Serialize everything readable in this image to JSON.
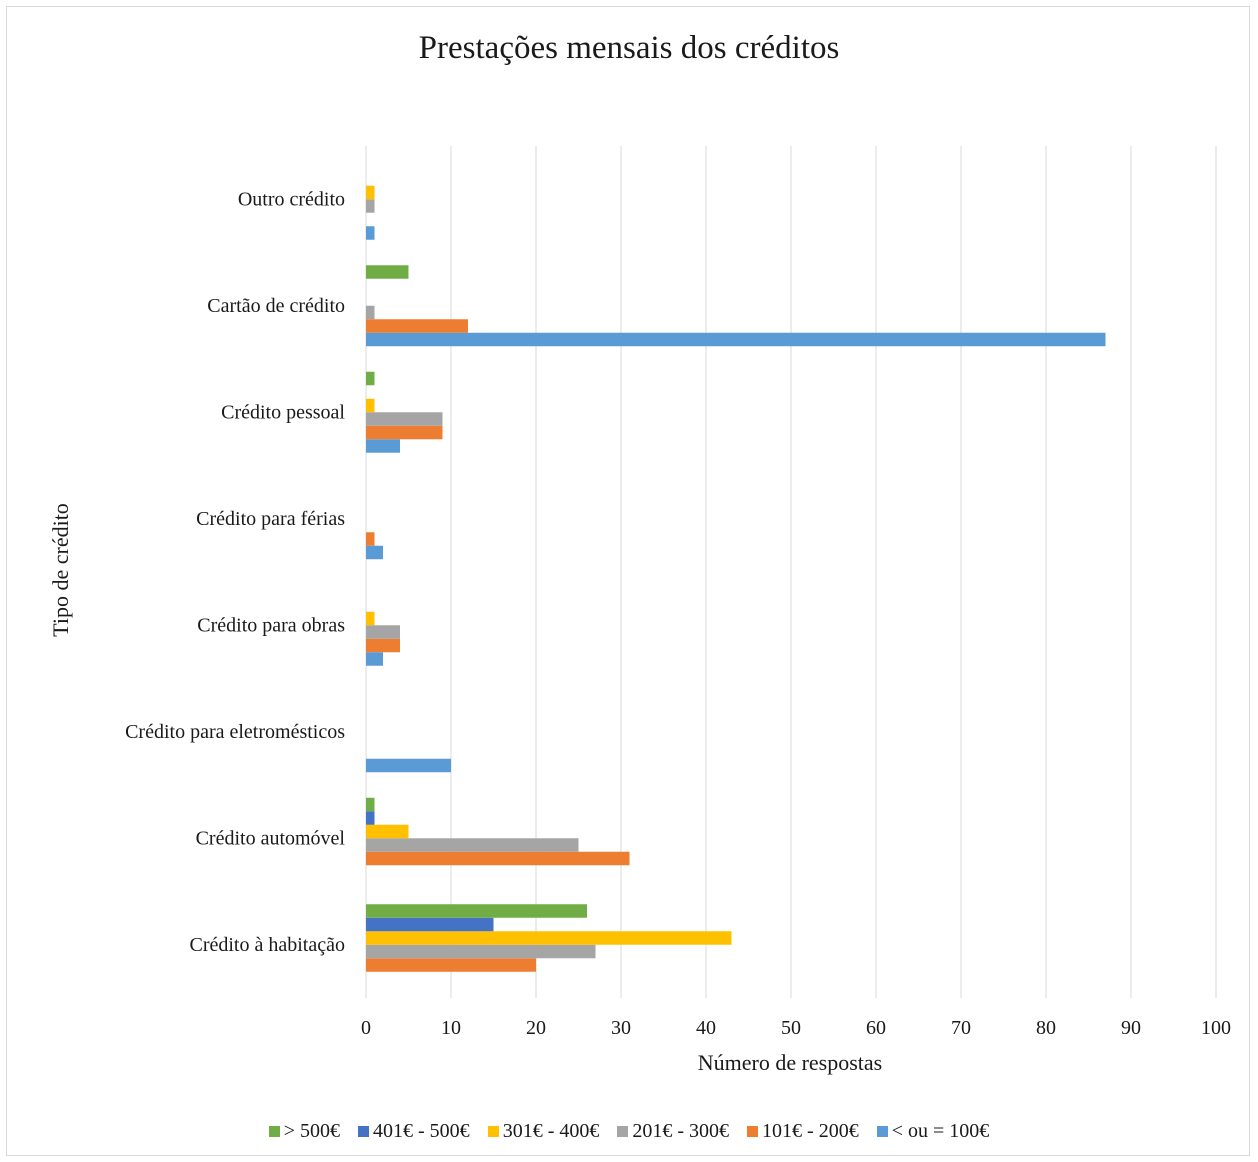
{
  "chart_data": {
    "type": "bar",
    "orientation": "horizontal",
    "title": "Prestações mensais dos créditos",
    "xlabel": "Número de respostas",
    "ylabel": "Tipo de crédito",
    "xlim": [
      0,
      100
    ],
    "xticks": [
      "0",
      "10",
      "20",
      "30",
      "40",
      "50",
      "60",
      "70",
      "80",
      "90",
      "100"
    ],
    "grid": "vertical",
    "legend_position": "bottom",
    "categories": [
      "Crédito à habitação",
      "Crédito automóvel",
      "Crédito para eletromésticos",
      "Crédito para obras",
      "Crédito para férias",
      "Crédito pessoal",
      "Cartão de crédito",
      "Outro crédito"
    ],
    "series": [
      {
        "name": "< ou = 100€",
        "color": "#5b9bd5",
        "values": [
          0,
          0,
          10,
          2,
          2,
          4,
          87,
          1
        ]
      },
      {
        "name": "101€ - 200€",
        "color": "#ed7d31",
        "values": [
          20,
          31,
          0,
          4,
          1,
          9,
          12,
          0
        ]
      },
      {
        "name": "201€ - 300€",
        "color": "#a5a5a5",
        "values": [
          27,
          25,
          0,
          4,
          0,
          9,
          1,
          1
        ]
      },
      {
        "name": "301€ - 400€",
        "color": "#ffc000",
        "values": [
          43,
          5,
          0,
          1,
          0,
          1,
          0,
          1
        ]
      },
      {
        "name": "401€ - 500€",
        "color": "#4472c4",
        "values": [
          15,
          1,
          0,
          0,
          0,
          0,
          0,
          0
        ]
      },
      {
        "name": "> 500€",
        "color": "#70ad47",
        "values": [
          26,
          1,
          0,
          0,
          0,
          1,
          5,
          0
        ]
      }
    ],
    "legend_order": [
      "> 500€",
      "401€ - 500€",
      "301€ - 400€",
      "201€ - 300€",
      "101€ - 200€",
      "< ou = 100€"
    ]
  }
}
